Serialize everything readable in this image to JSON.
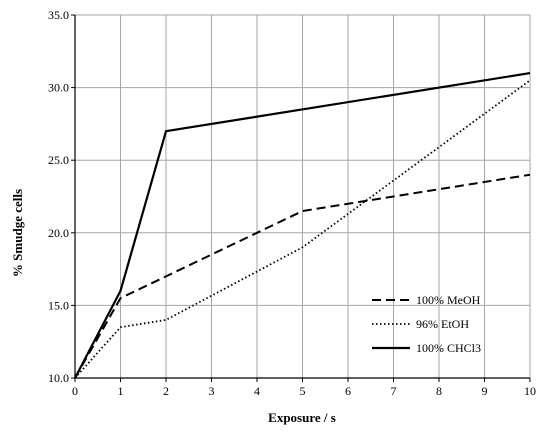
{
  "chart_data": {
    "type": "line",
    "title": "",
    "xlabel": "Exposure / s",
    "ylabel": "% Smudge cells",
    "xlim": [
      0,
      10
    ],
    "ylim": [
      10,
      35
    ],
    "x_ticks": [
      "0",
      "1",
      "2",
      "3",
      "4",
      "5",
      "6",
      "7",
      "8",
      "9",
      "10"
    ],
    "y_ticks": [
      "10.0",
      "15.0",
      "20.0",
      "25.0",
      "30.0",
      "35.0"
    ],
    "grid": "on",
    "legend_position": "bottom-right",
    "series": [
      {
        "name": "100% MeOH",
        "style": "dashed",
        "x": [
          0,
          1,
          2,
          5,
          10
        ],
        "y": [
          10.0,
          15.5,
          17.0,
          21.5,
          24.0
        ]
      },
      {
        "name": "96% EtOH",
        "style": "dotted",
        "x": [
          0,
          1,
          2,
          5,
          10
        ],
        "y": [
          10.0,
          13.5,
          14.0,
          19.0,
          30.5
        ]
      },
      {
        "name": "100% CHCl3",
        "style": "solid",
        "x": [
          0,
          1,
          2,
          10
        ],
        "y": [
          10.0,
          16.0,
          27.0,
          31.0
        ]
      }
    ],
    "colors": {
      "lines": "#000000",
      "grid": "#a6a6a6",
      "axis": "#000000"
    }
  }
}
